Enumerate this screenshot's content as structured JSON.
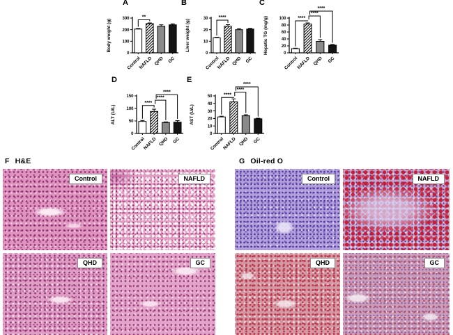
{
  "colors": {
    "bar_white": "#ffffff",
    "bar_gray": "#8a8a8a",
    "bar_black": "#141414",
    "axis": "#000000",
    "label_box_bg": "#ffffff"
  },
  "histology": {
    "F": {
      "letter": "F",
      "stain": "H&E",
      "images": [
        {
          "label": "Control",
          "base_color": "#df93bf"
        },
        {
          "label": "NAFLD",
          "base_color": "#e59cc2"
        },
        {
          "label": "QHD",
          "base_color": "#dd9dc5"
        },
        {
          "label": "GC",
          "base_color": "#e2a2ca"
        }
      ]
    },
    "G": {
      "letter": "G",
      "stain": "Oil-red O",
      "images": [
        {
          "label": "Control",
          "base_color": "#b1a0db"
        },
        {
          "label": "NAFLD",
          "base_color": "#c79fc6"
        },
        {
          "label": "QHD",
          "base_color": "#d298a4"
        },
        {
          "label": "GC",
          "base_color": "#ca9cb8"
        }
      ]
    }
  },
  "chart_data": [
    {
      "id": "A",
      "type": "bar",
      "title": "",
      "xlabel": "",
      "ylabel": "Body weight (g)",
      "categories": [
        "Control",
        "NAFLD",
        "QHD",
        "GC"
      ],
      "values": [
        205,
        252,
        230,
        242
      ],
      "errors": [
        5,
        6,
        12,
        8
      ],
      "ylim": [
        0,
        300
      ],
      "yticks": [
        0,
        100,
        200,
        300
      ],
      "bar_styles": [
        "white",
        "hatch",
        "gray",
        "black"
      ],
      "significance": [
        {
          "from": 0,
          "to": 1,
          "label": "**",
          "y": 285
        }
      ]
    },
    {
      "id": "B",
      "type": "bar",
      "title": "",
      "xlabel": "",
      "ylabel": "Liver weight (g)",
      "categories": [
        "Control",
        "NAFLD",
        "QHD",
        "GC"
      ],
      "values": [
        13,
        23,
        20,
        20.5
      ],
      "errors": [
        0.4,
        1.3,
        0.8,
        0.6
      ],
      "ylim": [
        0,
        30
      ],
      "yticks": [
        0,
        10,
        20,
        30
      ],
      "bar_styles": [
        "white",
        "hatch",
        "gray",
        "black"
      ],
      "significance": [
        {
          "from": 0,
          "to": 1,
          "label": "****",
          "y": 28.2
        }
      ]
    },
    {
      "id": "C",
      "type": "bar",
      "title": "",
      "xlabel": "",
      "ylabel": "Hepatic TG (mg/g)",
      "categories": [
        "Control",
        "NAFLD",
        "QHD",
        "GC"
      ],
      "values": [
        12,
        83,
        33,
        22
      ],
      "errors": [
        1.5,
        3,
        5,
        2
      ],
      "ylim": [
        0,
        100
      ],
      "yticks": [
        0,
        20,
        40,
        60,
        80,
        100
      ],
      "bar_styles": [
        "white",
        "hatch",
        "gray",
        "black"
      ],
      "significance": [
        {
          "from": 0,
          "to": 1,
          "label": "****",
          "y": 92
        },
        {
          "from": 1,
          "to": 2,
          "label": "****",
          "y": 106
        },
        {
          "from": 1,
          "to": 3,
          "label": "****",
          "y": 120
        }
      ]
    },
    {
      "id": "D",
      "type": "bar",
      "title": "",
      "xlabel": "",
      "ylabel": "ALT (U/L)",
      "categories": [
        "Control",
        "NAFLD",
        "QHD",
        "GC"
      ],
      "values": [
        48,
        88,
        44,
        45
      ],
      "errors": [
        4,
        9,
        2,
        6
      ],
      "ylim": [
        0,
        150
      ],
      "yticks": [
        0,
        50,
        100,
        150
      ],
      "bar_styles": [
        "white",
        "hatch",
        "gray",
        "black"
      ],
      "significance": [
        {
          "from": 0,
          "to": 1,
          "label": "****",
          "y": 112
        },
        {
          "from": 1,
          "to": 2,
          "label": "****",
          "y": 133
        },
        {
          "from": 1,
          "to": 3,
          "label": "****",
          "y": 155
        }
      ]
    },
    {
      "id": "E",
      "type": "bar",
      "title": "",
      "xlabel": "",
      "ylabel": "AST (U/L)",
      "categories": [
        "Control",
        "NAFLD",
        "QHD",
        "GC"
      ],
      "values": [
        22,
        42,
        23.5,
        19.5
      ],
      "errors": [
        1,
        4,
        1.5,
        0.8
      ],
      "ylim": [
        0,
        50
      ],
      "yticks": [
        0,
        10,
        20,
        30,
        40,
        50
      ],
      "bar_styles": [
        "white",
        "hatch",
        "gray",
        "black"
      ],
      "significance": [
        {
          "from": 0,
          "to": 1,
          "label": "****",
          "y": 48
        },
        {
          "from": 1,
          "to": 2,
          "label": "****",
          "y": 55
        },
        {
          "from": 1,
          "to": 3,
          "label": "****",
          "y": 62
        }
      ]
    }
  ]
}
